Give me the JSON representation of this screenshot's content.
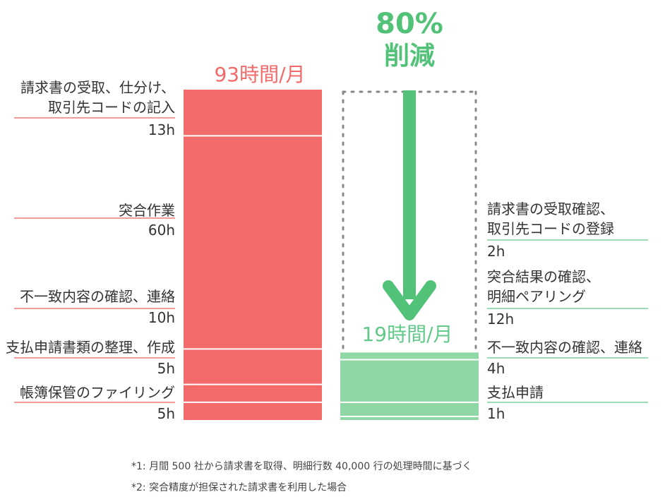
{
  "chart_data": {
    "type": "bar",
    "unit": "h",
    "series": [
      {
        "name": "93時間/月",
        "total_label": "93時間/月",
        "color": "#f26a6a",
        "segments": [
          {
            "label_lines": [
              "請求書の受取、仕分け、",
              "取引先コードの記入"
            ],
            "hours": 13,
            "hours_label": "13h"
          },
          {
            "label_lines": [
              "突合作業"
            ],
            "hours": 60,
            "hours_label": "60h"
          },
          {
            "label_lines": [
              "不一致内容の確認、連絡"
            ],
            "hours": 10,
            "hours_label": "10h"
          },
          {
            "label_lines": [
              "支払申請書類の整理、作成"
            ],
            "hours": 5,
            "hours_label": "5h"
          },
          {
            "label_lines": [
              "帳簿保管のファイリング"
            ],
            "hours": 5,
            "hours_label": "5h"
          }
        ]
      },
      {
        "name": "19時間/月",
        "total_label": "19時間/月",
        "color": "#8fd8a6",
        "segments": [
          {
            "label_lines": [
              "請求書の受取確認、",
              "取引先コードの登録"
            ],
            "hours": 2,
            "hours_label": "2h"
          },
          {
            "label_lines": [
              "突合結果の確認、",
              "明細ペアリング"
            ],
            "hours": 12,
            "hours_label": "12h"
          },
          {
            "label_lines": [
              "不一致内容の確認、連絡"
            ],
            "hours": 4,
            "hours_label": "4h"
          },
          {
            "label_lines": [
              "支払申請"
            ],
            "hours": 1,
            "hours_label": "1h"
          }
        ]
      }
    ],
    "annotation": {
      "percent": "80%",
      "text": "削減"
    }
  },
  "footnotes": [
    "*1: 月間 500 社から請求書を取得、明細行数 40,000 行の処理時間に基づく",
    "*2: 突合精度が担保された請求書を利用した場合"
  ],
  "colors": {
    "red": "#f26a6a",
    "green": "#8fd8a6",
    "arrow": "#52c279",
    "dots": "#888888",
    "red_line": "#f07a7a",
    "green_line": "#7fd0a0"
  }
}
